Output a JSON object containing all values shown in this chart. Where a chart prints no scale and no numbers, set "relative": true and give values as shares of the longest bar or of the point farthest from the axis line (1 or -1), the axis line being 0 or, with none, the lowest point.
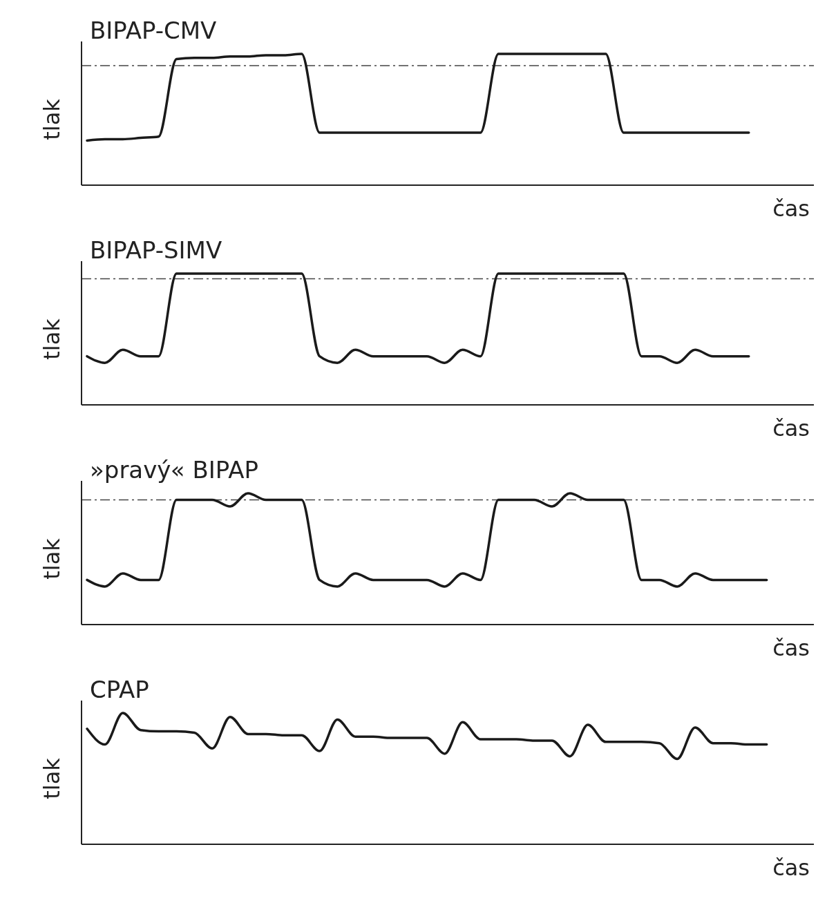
{
  "chart_data": [
    {
      "type": "line",
      "relative": true,
      "title": "BIPAP-CMV",
      "xlabel": "čas",
      "ylabel": "tlak",
      "categories": [
        null,
        null,
        null,
        null,
        null,
        null,
        null,
        null,
        null,
        null,
        null,
        null,
        null,
        null,
        null,
        null,
        null,
        null,
        null,
        null,
        null,
        null,
        null,
        null,
        null,
        null,
        null,
        null,
        null,
        null,
        null,
        null,
        null,
        null,
        null,
        null,
        null,
        null,
        null,
        null
      ],
      "series": [
        {
          "color": "#1a1a1a",
          "values": [
            0.34,
            0.35,
            0.35,
            0.36,
            0.37,
            0.96,
            0.97,
            0.97,
            0.98,
            0.98,
            0.99,
            0.99,
            1.0,
            0.4,
            0.4,
            0.4,
            0.4,
            0.4,
            0.4,
            0.4,
            0.4,
            0.4,
            0.4,
            1.0,
            1.0,
            1.0,
            1.0,
            1.0,
            1.0,
            1.0,
            0.4,
            0.4,
            0.4,
            0.4,
            0.4,
            0.4,
            0.4,
            0.4,
            null,
            null
          ]
        }
      ],
      "ref_lines": [
        {
          "axis": "y",
          "value": 0.91,
          "line_style": "dashed",
          "color": "#444444"
        }
      ]
    },
    {
      "type": "line",
      "relative": true,
      "title": "BIPAP-SIMV",
      "xlabel": "čas",
      "ylabel": "tlak",
      "categories": [
        null,
        null,
        null,
        null,
        null,
        null,
        null,
        null,
        null,
        null,
        null,
        null,
        null,
        null,
        null,
        null,
        null,
        null,
        null,
        null,
        null,
        null,
        null,
        null,
        null,
        null,
        null,
        null,
        null,
        null,
        null,
        null,
        null,
        null,
        null,
        null,
        null,
        null,
        null,
        null
      ],
      "series": [
        {
          "color": "#1a1a1a",
          "values": [
            0.37,
            0.32,
            0.42,
            0.37,
            0.37,
            1.0,
            1.0,
            1.0,
            1.0,
            1.0,
            1.0,
            1.0,
            1.0,
            0.37,
            0.32,
            0.42,
            0.37,
            0.37,
            0.37,
            0.37,
            0.32,
            0.42,
            0.37,
            1.0,
            1.0,
            1.0,
            1.0,
            1.0,
            1.0,
            1.0,
            1.0,
            0.37,
            0.37,
            0.32,
            0.42,
            0.37,
            0.37,
            0.37,
            null,
            null
          ]
        }
      ],
      "ref_lines": [
        {
          "axis": "y",
          "value": 0.96,
          "line_style": "dashed",
          "color": "#444444"
        }
      ]
    },
    {
      "type": "line",
      "relative": true,
      "title": "»pravý« BIPAP",
      "xlabel": "čas",
      "ylabel": "tlak",
      "categories": [
        null,
        null,
        null,
        null,
        null,
        null,
        null,
        null,
        null,
        null,
        null,
        null,
        null,
        null,
        null,
        null,
        null,
        null,
        null,
        null,
        null,
        null,
        null,
        null,
        null,
        null,
        null,
        null,
        null,
        null,
        null,
        null,
        null,
        null,
        null,
        null,
        null,
        null,
        null,
        null
      ],
      "series": [
        {
          "color": "#1a1a1a",
          "values": [
            0.34,
            0.29,
            0.39,
            0.34,
            0.34,
            0.95,
            0.95,
            0.95,
            0.9,
            1.0,
            0.95,
            0.95,
            0.95,
            0.34,
            0.29,
            0.39,
            0.34,
            0.34,
            0.34,
            0.34,
            0.29,
            0.39,
            0.34,
            0.95,
            0.95,
            0.95,
            0.9,
            1.0,
            0.95,
            0.95,
            0.95,
            0.34,
            0.34,
            0.29,
            0.39,
            0.34,
            0.34,
            0.34,
            0.34,
            null
          ]
        }
      ],
      "ref_lines": [
        {
          "axis": "y",
          "value": 0.95,
          "line_style": "dashed",
          "color": "#444444"
        }
      ]
    },
    {
      "type": "line",
      "relative": true,
      "title": "CPAP",
      "xlabel": "čas",
      "ylabel": "tlak",
      "categories": [
        null,
        null,
        null,
        null,
        null,
        null,
        null,
        null,
        null,
        null,
        null,
        null,
        null,
        null,
        null,
        null,
        null,
        null,
        null,
        null,
        null,
        null,
        null,
        null,
        null,
        null,
        null,
        null,
        null,
        null,
        null,
        null,
        null,
        null,
        null,
        null,
        null,
        null,
        null,
        null
      ],
      "series": [
        {
          "color": "#1a1a1a",
          "values": [
            0.88,
            0.76,
            1.0,
            0.87,
            0.86,
            0.86,
            0.85,
            0.73,
            0.97,
            0.84,
            0.84,
            0.83,
            0.83,
            0.71,
            0.95,
            0.82,
            0.82,
            0.81,
            0.81,
            0.81,
            0.69,
            0.93,
            0.8,
            0.8,
            0.8,
            0.79,
            0.79,
            0.67,
            0.91,
            0.78,
            0.78,
            0.78,
            0.77,
            0.65,
            0.89,
            0.77,
            0.77,
            0.76,
            0.76,
            null
          ]
        }
      ]
    }
  ]
}
